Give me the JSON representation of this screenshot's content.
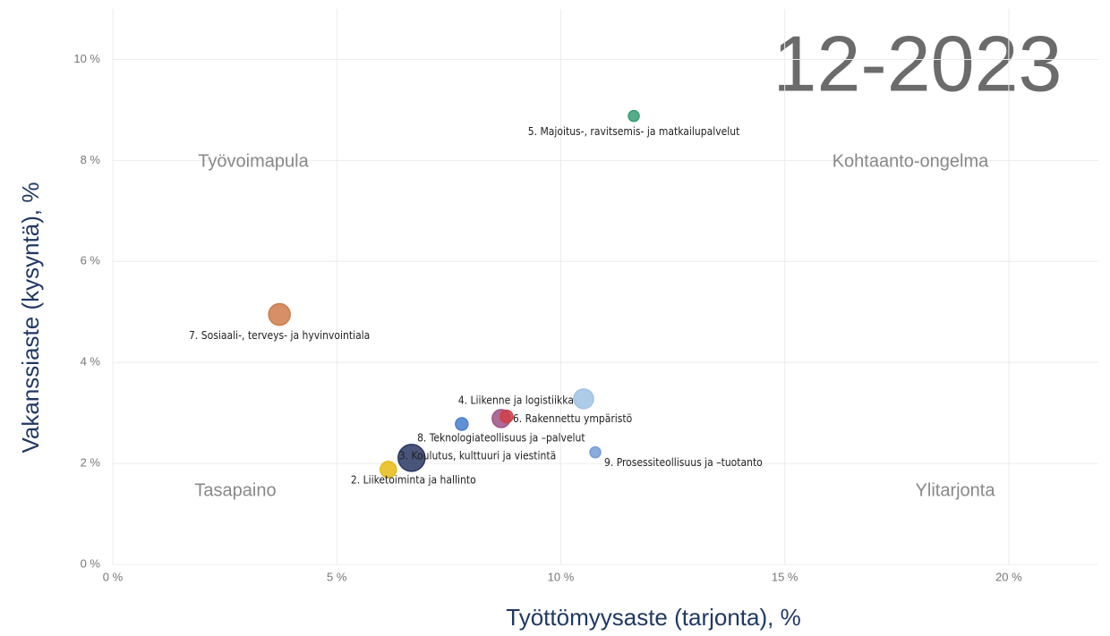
{
  "chart_data": {
    "type": "scatter",
    "stamp": "12-2023",
    "x_label": "Työttömyysaste (tarjonta), %",
    "y_label": "Vakanssiaste (kysyntä), %",
    "quadrants": [
      "Työvoimapula",
      "Kohtaanto-ongelma",
      "Tasapaino",
      "Ylitarjonta"
    ],
    "labels": [
      "5. Majoitus-, ravitsemis- ja matkailupalvelut",
      "7. Sosiaali-, terveys- ja hyvinvointiala",
      "4. Liikenne ja logistiikka",
      null,
      "6. Rakennettu ympäristö",
      "8. Teknologiateollisuus ja –palvelut",
      "3. Koulutus, kulttuuri ja viestintä",
      "2. Liiketoiminta ja hallinto",
      "9. Prosessiteollisuus ja –tuotanto"
    ],
    "x": [
      11.63,
      3.72,
      10.51,
      8.67,
      8.79,
      7.79,
      6.67,
      6.15,
      10.77
    ],
    "values": [
      8.88,
      4.95,
      3.28,
      2.89,
      2.93,
      2.78,
      2.11,
      1.88,
      2.22
    ],
    "sizes": [
      36,
      144,
      121,
      100,
      49,
      49,
      225,
      81,
      36
    ],
    "colors": [
      "#3aa87a",
      "#d9834f",
      "#a8cdf0",
      "#a7578c",
      "#d9434b",
      "#4a86d6",
      "#2b3a67",
      "#f2c418",
      "#7aa6e0"
    ],
    "xlim": [
      0,
      22
    ],
    "ylim": [
      0,
      11
    ],
    "xticks": [
      {
        "value": 0,
        "label": "0 %"
      },
      {
        "value": 5,
        "label": "5 %"
      },
      {
        "value": 10,
        "label": "10 %"
      },
      {
        "value": 15,
        "label": "15 %"
      },
      {
        "value": 20,
        "label": "20 %"
      }
    ],
    "yticks": [
      {
        "value": 0,
        "label": "0 %"
      },
      {
        "value": 2,
        "label": "2 %"
      },
      {
        "value": 4,
        "label": "4 %"
      },
      {
        "value": 6,
        "label": "6 %"
      },
      {
        "value": 8,
        "label": "8 %"
      },
      {
        "value": 10,
        "label": "10 %"
      }
    ],
    "grid": true
  }
}
